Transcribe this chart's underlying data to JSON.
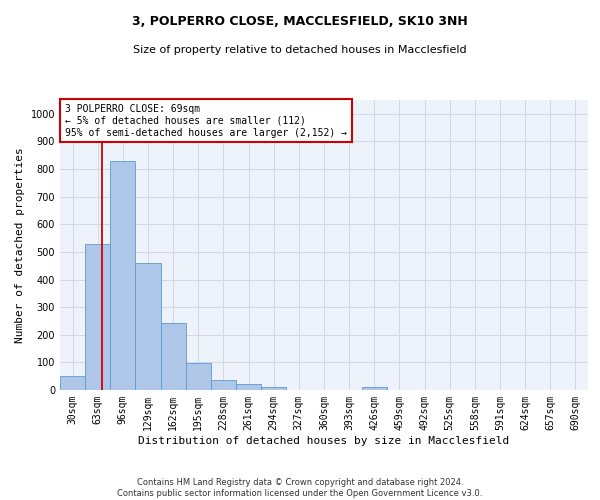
{
  "title_line1": "3, POLPERRO CLOSE, MACCLESFIELD, SK10 3NH",
  "title_line2": "Size of property relative to detached houses in Macclesfield",
  "xlabel": "Distribution of detached houses by size in Macclesfield",
  "ylabel": "Number of detached properties",
  "footer_line1": "Contains HM Land Registry data © Crown copyright and database right 2024.",
  "footer_line2": "Contains public sector information licensed under the Open Government Licence v3.0.",
  "annotation_line1": "3 POLPERRO CLOSE: 69sqm",
  "annotation_line2": "← 5% of detached houses are smaller (112)",
  "annotation_line3": "95% of semi-detached houses are larger (2,152) →",
  "bar_color": "#aec6e8",
  "bar_edge_color": "#5b9bd5",
  "vline_color": "#cc0000",
  "vline_x": 1.18,
  "categories": [
    "30sqm",
    "63sqm",
    "96sqm",
    "129sqm",
    "162sqm",
    "195sqm",
    "228sqm",
    "261sqm",
    "294sqm",
    "327sqm",
    "360sqm",
    "393sqm",
    "426sqm",
    "459sqm",
    "492sqm",
    "525sqm",
    "558sqm",
    "591sqm",
    "624sqm",
    "657sqm",
    "690sqm"
  ],
  "values": [
    52,
    530,
    830,
    460,
    242,
    97,
    35,
    20,
    12,
    0,
    0,
    0,
    10,
    0,
    0,
    0,
    0,
    0,
    0,
    0,
    0
  ],
  "ylim": [
    0,
    1050
  ],
  "yticks": [
    0,
    100,
    200,
    300,
    400,
    500,
    600,
    700,
    800,
    900,
    1000
  ],
  "grid_color": "#d0d8e8",
  "background_color": "#eef2fa",
  "annotation_box_facecolor": "#ffffff",
  "annotation_box_edgecolor": "#cc0000",
  "title1_fontsize": 9,
  "title2_fontsize": 8,
  "xlabel_fontsize": 8,
  "ylabel_fontsize": 8,
  "tick_fontsize": 7,
  "footer_fontsize": 6,
  "annotation_fontsize": 7
}
